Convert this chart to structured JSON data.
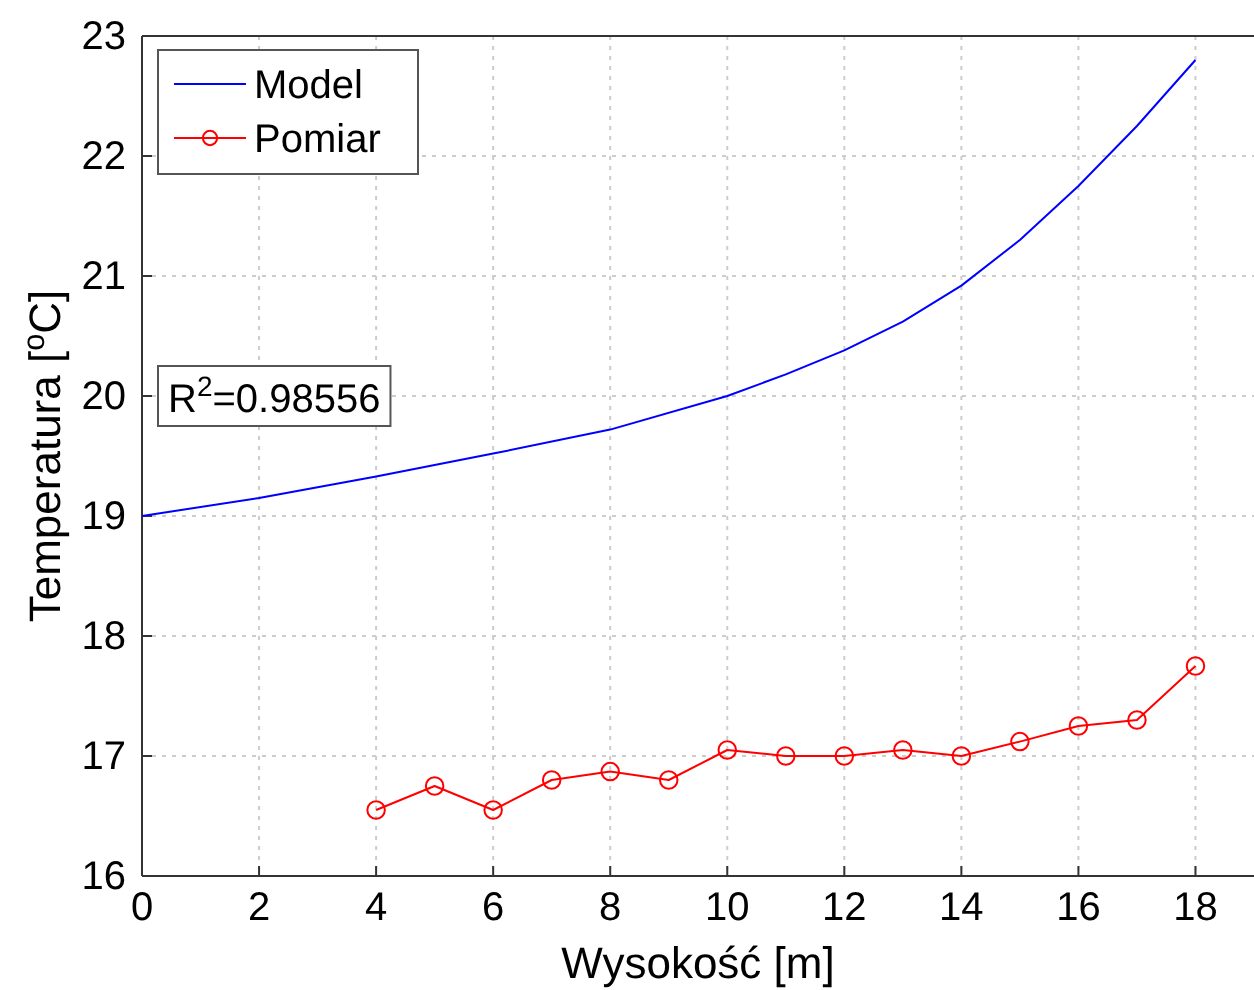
{
  "chart_data": {
    "type": "line",
    "xlabel": "Wysokość [m]",
    "ylabel": "Temperatura  [$^{o}$C]",
    "xlim": [
      0,
      19
    ],
    "xticks": [
      0,
      2,
      4,
      6,
      8,
      10,
      12,
      14,
      16,
      18
    ],
    "ylim": [
      16,
      23
    ],
    "yticks": [
      16,
      17,
      18,
      19,
      20,
      21,
      22,
      23
    ],
    "grid": true,
    "legend": "top left",
    "annotations": [
      "R$^{2}$=0.98556"
    ],
    "series": [
      {
        "name": "Model",
        "color": "#0000ff",
        "marker": "none",
        "x": [
          0,
          2,
          4,
          6,
          8,
          10,
          11,
          12,
          13,
          14,
          15,
          16,
          17,
          18
        ],
        "values": [
          19.0,
          19.15,
          19.33,
          19.52,
          19.72,
          20.0,
          20.18,
          20.38,
          20.62,
          20.92,
          21.3,
          21.75,
          22.25,
          22.8
        ]
      },
      {
        "name": "Pomiar",
        "color": "#ff0000",
        "marker": "circle",
        "x": [
          4,
          5,
          6,
          7,
          8,
          9,
          10,
          11,
          12,
          13,
          14,
          15,
          16,
          17,
          18
        ],
        "values": [
          16.55,
          16.75,
          16.55,
          16.8,
          16.87,
          16.8,
          17.05,
          17.0,
          17.0,
          17.05,
          17.0,
          17.12,
          17.25,
          17.3,
          17.75
        ]
      }
    ]
  }
}
